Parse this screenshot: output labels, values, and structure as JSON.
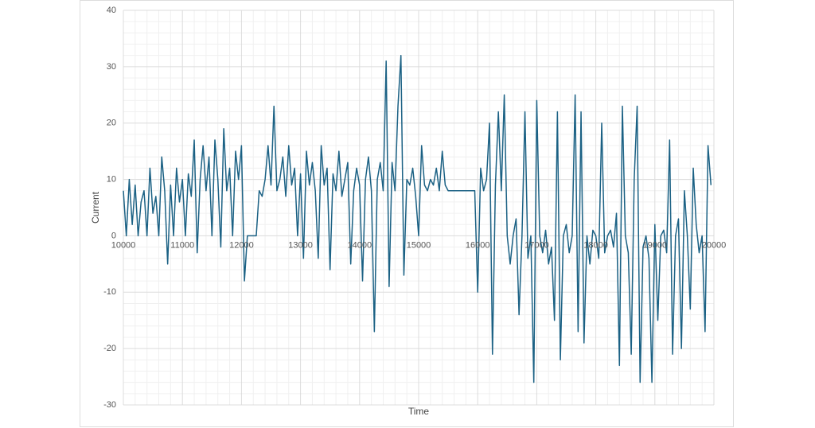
{
  "chart_data": {
    "type": "line",
    "x_label": "Time",
    "y_label": "Current",
    "color": "#1b6184",
    "x": [
      10000,
      10050,
      10100,
      10150,
      10200,
      10250,
      10300,
      10350,
      10400,
      10450,
      10500,
      10550,
      10600,
      10650,
      10700,
      10750,
      10800,
      10850,
      10900,
      10950,
      11000,
      11050,
      11100,
      11150,
      11200,
      11250,
      11300,
      11350,
      11400,
      11450,
      11500,
      11550,
      11600,
      11650,
      11700,
      11750,
      11800,
      11850,
      11900,
      11950,
      12000,
      12050,
      12100,
      12150,
      12200,
      12250,
      12300,
      12350,
      12400,
      12450,
      12500,
      12550,
      12600,
      12650,
      12700,
      12750,
      12800,
      12850,
      12900,
      12950,
      13000,
      13050,
      13100,
      13150,
      13200,
      13250,
      13300,
      13350,
      13400,
      13450,
      13500,
      13550,
      13600,
      13650,
      13700,
      13750,
      13800,
      13850,
      13900,
      13950,
      14000,
      14050,
      14100,
      14150,
      14200,
      14250,
      14300,
      14350,
      14400,
      14450,
      14500,
      14550,
      14600,
      14650,
      14700,
      14750,
      14800,
      14850,
      14900,
      14950,
      15000,
      15050,
      15100,
      15150,
      15200,
      15250,
      15300,
      15350,
      15400,
      15450,
      15500,
      15550,
      15600,
      15650,
      15700,
      15750,
      15800,
      15850,
      15900,
      15950,
      16000,
      16050,
      16100,
      16150,
      16200,
      16250,
      16300,
      16350,
      16400,
      16450,
      16500,
      16550,
      16600,
      16650,
      16700,
      16750,
      16800,
      16850,
      16900,
      16950,
      17000,
      17050,
      17100,
      17150,
      17200,
      17250,
      17300,
      17350,
      17400,
      17450,
      17500,
      17550,
      17600,
      17650,
      17700,
      17750,
      17800,
      17850,
      17900,
      17950,
      18000,
      18050,
      18100,
      18150,
      18200,
      18250,
      18300,
      18350,
      18400,
      18450,
      18500,
      18550,
      18600,
      18650,
      18700,
      18750,
      18800,
      18850,
      18900,
      18950,
      19000,
      19050,
      19100,
      19150,
      19200,
      19250,
      19300,
      19350,
      19400,
      19450,
      19500,
      19550,
      19600,
      19650,
      19700,
      19750,
      19800,
      19850,
      19900,
      19950
    ],
    "values": [
      8,
      0,
      10,
      2,
      9,
      0,
      6,
      8,
      0,
      12,
      4,
      7,
      0,
      14,
      8,
      -5,
      9,
      0,
      12,
      6,
      10,
      0,
      11,
      7,
      17,
      -3,
      10,
      16,
      8,
      14,
      0,
      17,
      10,
      -2,
      19,
      8,
      12,
      0,
      15,
      10,
      16,
      -8,
      0,
      0,
      0,
      0,
      8,
      7,
      10,
      16,
      9,
      23,
      8,
      10,
      14,
      7,
      16,
      9,
      12,
      0,
      11,
      -4,
      15,
      9,
      13,
      8,
      -4,
      16,
      9,
      12,
      -6,
      11,
      8,
      15,
      7,
      10,
      13,
      -5,
      8,
      12,
      9,
      -8,
      10,
      14,
      8,
      -17,
      10,
      13,
      8,
      31,
      -9,
      13,
      8,
      23,
      32,
      -7,
      10,
      9,
      12,
      7,
      0,
      16,
      9,
      8,
      10,
      9,
      12,
      8,
      15,
      9,
      8,
      8,
      8,
      8,
      8,
      8,
      8,
      8,
      8,
      8,
      -10,
      12,
      8,
      10,
      20,
      -21,
      9,
      22,
      8,
      25,
      0,
      -5,
      0,
      3,
      -14,
      0,
      22,
      -4,
      0,
      -26,
      24,
      0,
      -3,
      1,
      -5,
      -2,
      -15,
      22,
      -22,
      0,
      2,
      -3,
      0,
      25,
      -17,
      22,
      -19,
      0,
      -5,
      1,
      0,
      -4,
      20,
      -3,
      0,
      1,
      -2,
      4,
      -23,
      23,
      0,
      -3,
      -21,
      10,
      23,
      -26,
      -2,
      0,
      -4,
      -26,
      2,
      -15,
      0,
      1,
      -3,
      17,
      -21,
      0,
      3,
      -20,
      8,
      0,
      -13,
      12,
      2,
      -3,
      0,
      -17,
      16,
      9
    ],
    "xlim": [
      10000,
      20000
    ],
    "xticks": [
      10000,
      11000,
      12000,
      13000,
      14000,
      15000,
      16000,
      17000,
      18000,
      19000,
      20000
    ],
    "ylim": [
      -30,
      40
    ],
    "yticks": [
      -30,
      -20,
      -10,
      0,
      10,
      20,
      30,
      40
    ],
    "grid": true,
    "minor_grid_divisions": 5
  }
}
